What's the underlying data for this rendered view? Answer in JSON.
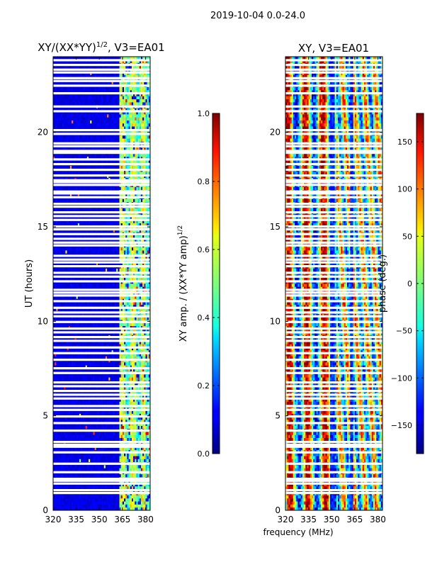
{
  "suptitle": "2019-10-04 0.0-24.0",
  "chart_data": [
    {
      "type": "heatmap",
      "title": "XY/(XX*YY)^1/2, V3=EA01",
      "title_main": "XY/(XX*YY)",
      "title_sup": "1/2",
      "title_rest": ", V3=EA01",
      "xlabel": "",
      "ylabel": "UT (hours)",
      "xlim": [
        320,
        383
      ],
      "ylim": [
        0,
        24
      ],
      "x_ticks": [
        320,
        335,
        350,
        365,
        380
      ],
      "x_tick_labels": [
        "320",
        "335",
        "350",
        "365",
        "380"
      ],
      "y_ticks": [
        0,
        5,
        10,
        15,
        20
      ],
      "y_tick_labels": [
        "0",
        "5",
        "10",
        "15",
        "20"
      ],
      "colorbar": {
        "label": "XY amp. / (XX*YY amp)^1/2",
        "label_main": "XY amp. / (XX*YY amp)",
        "label_sup": "1/2",
        "range": [
          0.0,
          1.0
        ],
        "ticks": [
          0.0,
          0.2,
          0.4,
          0.6,
          0.8,
          1.0
        ],
        "tick_labels": [
          "0.0",
          "0.2",
          "0.4",
          "0.6",
          "0.8",
          "1.0"
        ],
        "colormap": "jet"
      }
    },
    {
      "type": "heatmap",
      "title": "XY, V3=EA01",
      "xlabel": "frequency (MHz)",
      "ylabel": "",
      "xlim": [
        320,
        383
      ],
      "ylim": [
        0,
        24
      ],
      "x_ticks": [
        320,
        335,
        350,
        365,
        380
      ],
      "x_tick_labels": [
        "320",
        "335",
        "350",
        "365",
        "380"
      ],
      "y_ticks": [
        0,
        5,
        10,
        15,
        20
      ],
      "y_tick_labels": [
        "0",
        "5",
        "10",
        "15",
        "20"
      ],
      "colorbar": {
        "label": "phase (deg.)",
        "range": [
          -180,
          180
        ],
        "ticks": [
          -150,
          -100,
          -50,
          0,
          50,
          100,
          150
        ],
        "tick_labels": [
          "−150",
          "−100",
          "−50",
          "0",
          "50",
          "100",
          "150"
        ],
        "colormap": "jet"
      }
    }
  ],
  "flagged_hours": [
    0.9,
    1.05,
    1.4,
    1.55,
    1.65,
    2.0,
    2.45,
    3.05,
    3.35,
    3.45,
    3.6,
    4.2,
    4.6,
    4.95,
    5.3,
    5.5,
    5.9,
    6.1,
    6.3,
    6.55,
    6.75,
    7.25,
    7.5,
    7.95,
    8.3,
    8.6,
    8.95,
    9.15,
    9.4,
    9.6,
    9.95,
    10.25,
    10.45,
    10.7,
    11.05,
    11.35,
    11.5,
    11.65,
    12.1,
    12.35,
    12.55,
    12.9,
    13.1,
    13.25,
    13.45,
    14.0,
    14.15,
    14.35,
    14.6,
    14.85,
    15.0,
    15.35,
    15.55,
    15.75,
    16.05,
    16.2,
    16.55,
    16.75,
    16.85,
    17.2,
    17.35,
    17.45,
    17.7,
    18.0,
    18.3,
    18.55,
    18.9,
    19.0,
    19.25,
    19.4,
    19.9,
    20.1,
    21.1,
    21.35,
    22.05,
    22.45,
    22.7,
    22.85,
    23.15,
    23.3,
    23.55,
    23.8
  ]
}
